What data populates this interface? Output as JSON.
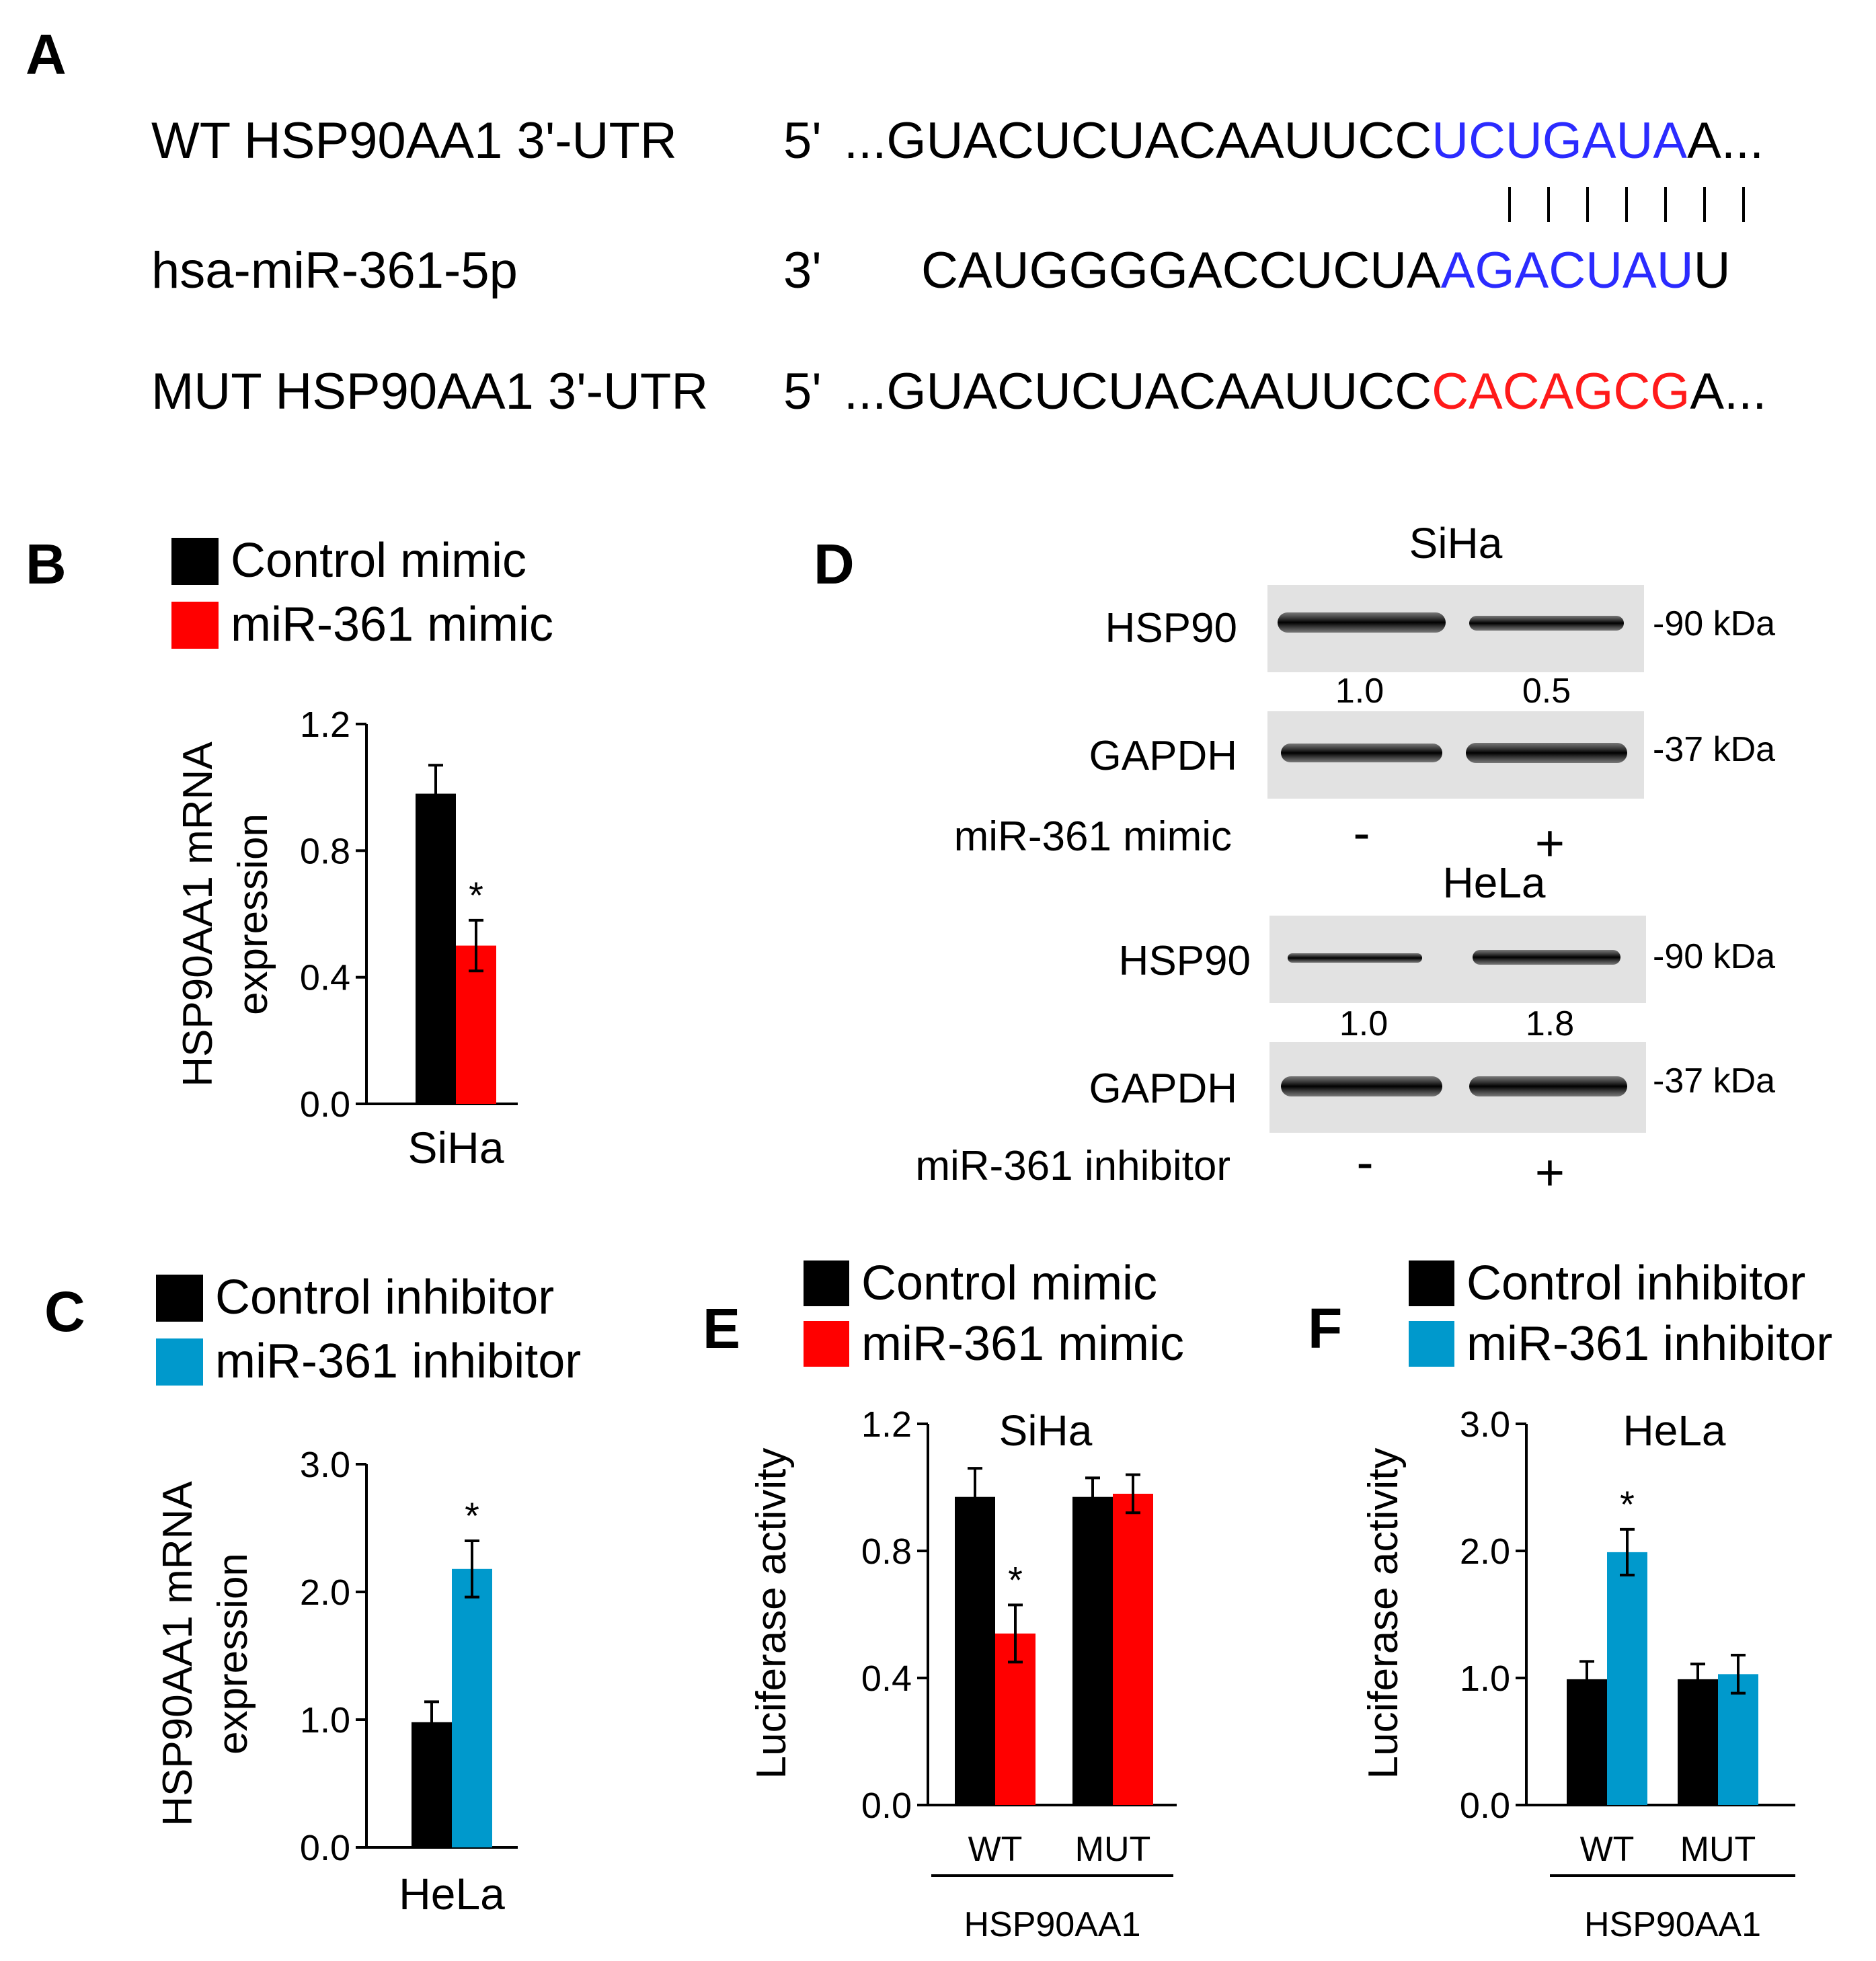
{
  "panelA": {
    "label": "A",
    "rows": [
      {
        "name": "WT HSP90AA1 3'-UTR",
        "end": "5'",
        "pre": "...GUACUCUACAAUUCC",
        "site": "UCUGAUA",
        "post": "A...",
        "site_color": "#2b2bff"
      },
      {
        "name": "hsa-miR-361-5p",
        "end": "3'",
        "pre": "CAUGGGGACCUCUA",
        "site": "AGACUAU",
        "post": "U",
        "site_color": "#2b2bff"
      },
      {
        "name": "MUT HSP90AA1 3'-UTR",
        "end": "5'",
        "pre": "...GUACUCUACAAUUCC",
        "site": "CACAGCG",
        "post": "A...",
        "site_color": "#ff1a1a"
      }
    ],
    "pairs": 7
  },
  "colors": {
    "control": "#000000",
    "mimic": "#ff0000",
    "inhibitor": "#0099cc"
  },
  "chart_data": [
    {
      "panel": "B",
      "type": "bar",
      "legend": [
        "Control mimic",
        "miR-361 mimic"
      ],
      "series_colors": [
        "#000000",
        "#ff0000"
      ],
      "ylabel": [
        "HSP90AA1 mRNA",
        "expression"
      ],
      "yticks": [
        "0.0",
        "0.4",
        "0.8",
        "1.2"
      ],
      "ylim": [
        0,
        1.2
      ],
      "categories": [
        "SiHa"
      ],
      "series": [
        {
          "values": [
            0.98
          ],
          "errors": [
            0.09
          ]
        },
        {
          "values": [
            0.5
          ],
          "errors": [
            0.08
          ]
        }
      ],
      "significance": [
        {
          "category": 0,
          "series": 1,
          "mark": "*"
        }
      ]
    },
    {
      "panel": "C",
      "type": "bar",
      "legend": [
        "Control inhibitor",
        "miR-361 inhibitor"
      ],
      "series_colors": [
        "#000000",
        "#0099cc"
      ],
      "ylabel": [
        "HSP90AA1 mRNA",
        "expression"
      ],
      "yticks": [
        "0.0",
        "1.0",
        "2.0",
        "3.0"
      ],
      "ylim": [
        0,
        3.0
      ],
      "categories": [
        "HeLa"
      ],
      "series": [
        {
          "values": [
            0.98
          ],
          "errors": [
            0.16
          ]
        },
        {
          "values": [
            2.18
          ],
          "errors": [
            0.22
          ]
        }
      ],
      "significance": [
        {
          "category": 0,
          "series": 1,
          "mark": "*"
        }
      ]
    },
    {
      "panel": "E",
      "type": "bar",
      "legend": [
        "Control mimic",
        "miR-361 mimic"
      ],
      "series_colors": [
        "#000000",
        "#ff0000"
      ],
      "title": "SiHa",
      "ylabel": [
        "Luciferase activity"
      ],
      "yticks": [
        "0.0",
        "0.4",
        "0.8",
        "1.2"
      ],
      "ylim": [
        0,
        1.2
      ],
      "categories": [
        "WT",
        "MUT"
      ],
      "group_label": "HSP90AA1",
      "series": [
        {
          "values": [
            0.97,
            0.97
          ],
          "errors": [
            0.09,
            0.06
          ]
        },
        {
          "values": [
            0.54,
            0.98
          ],
          "errors": [
            0.09,
            0.06
          ]
        }
      ],
      "significance": [
        {
          "category": 0,
          "series": 1,
          "mark": "*"
        }
      ]
    },
    {
      "panel": "F",
      "type": "bar",
      "legend": [
        "Control inhibitor",
        "miR-361 inhibitor"
      ],
      "series_colors": [
        "#000000",
        "#0099cc"
      ],
      "title": "HeLa",
      "ylabel": [
        "Luciferase activity"
      ],
      "yticks": [
        "0.0",
        "1.0",
        "2.0",
        "3.0"
      ],
      "ylim": [
        0,
        3.0
      ],
      "categories": [
        "WT",
        "MUT"
      ],
      "group_label": "HSP90AA1",
      "series": [
        {
          "values": [
            0.99,
            0.99
          ],
          "errors": [
            0.14,
            0.12
          ]
        },
        {
          "values": [
            1.99,
            1.03
          ],
          "errors": [
            0.18,
            0.15
          ]
        }
      ],
      "significance": [
        {
          "category": 0,
          "series": 1,
          "mark": "*"
        }
      ]
    }
  ],
  "panelD": {
    "label": "D",
    "blots": [
      {
        "cell": "SiHa",
        "rows": [
          {
            "protein": "HSP90",
            "kda": "-90 kDa",
            "values": [
              "1.0",
              "0.5"
            ]
          },
          {
            "protein": "GAPDH",
            "kda": "-37 kDa"
          }
        ],
        "treatment": "miR-361 mimic",
        "signs": [
          "-",
          "+"
        ]
      },
      {
        "cell": "HeLa",
        "rows": [
          {
            "protein": "HSP90",
            "kda": "-90 kDa",
            "values": [
              "1.0",
              "1.8"
            ]
          },
          {
            "protein": "GAPDH",
            "kda": "-37 kDa"
          }
        ],
        "treatment": "miR-361 inhibitor",
        "signs": [
          "-",
          "+"
        ]
      }
    ]
  }
}
